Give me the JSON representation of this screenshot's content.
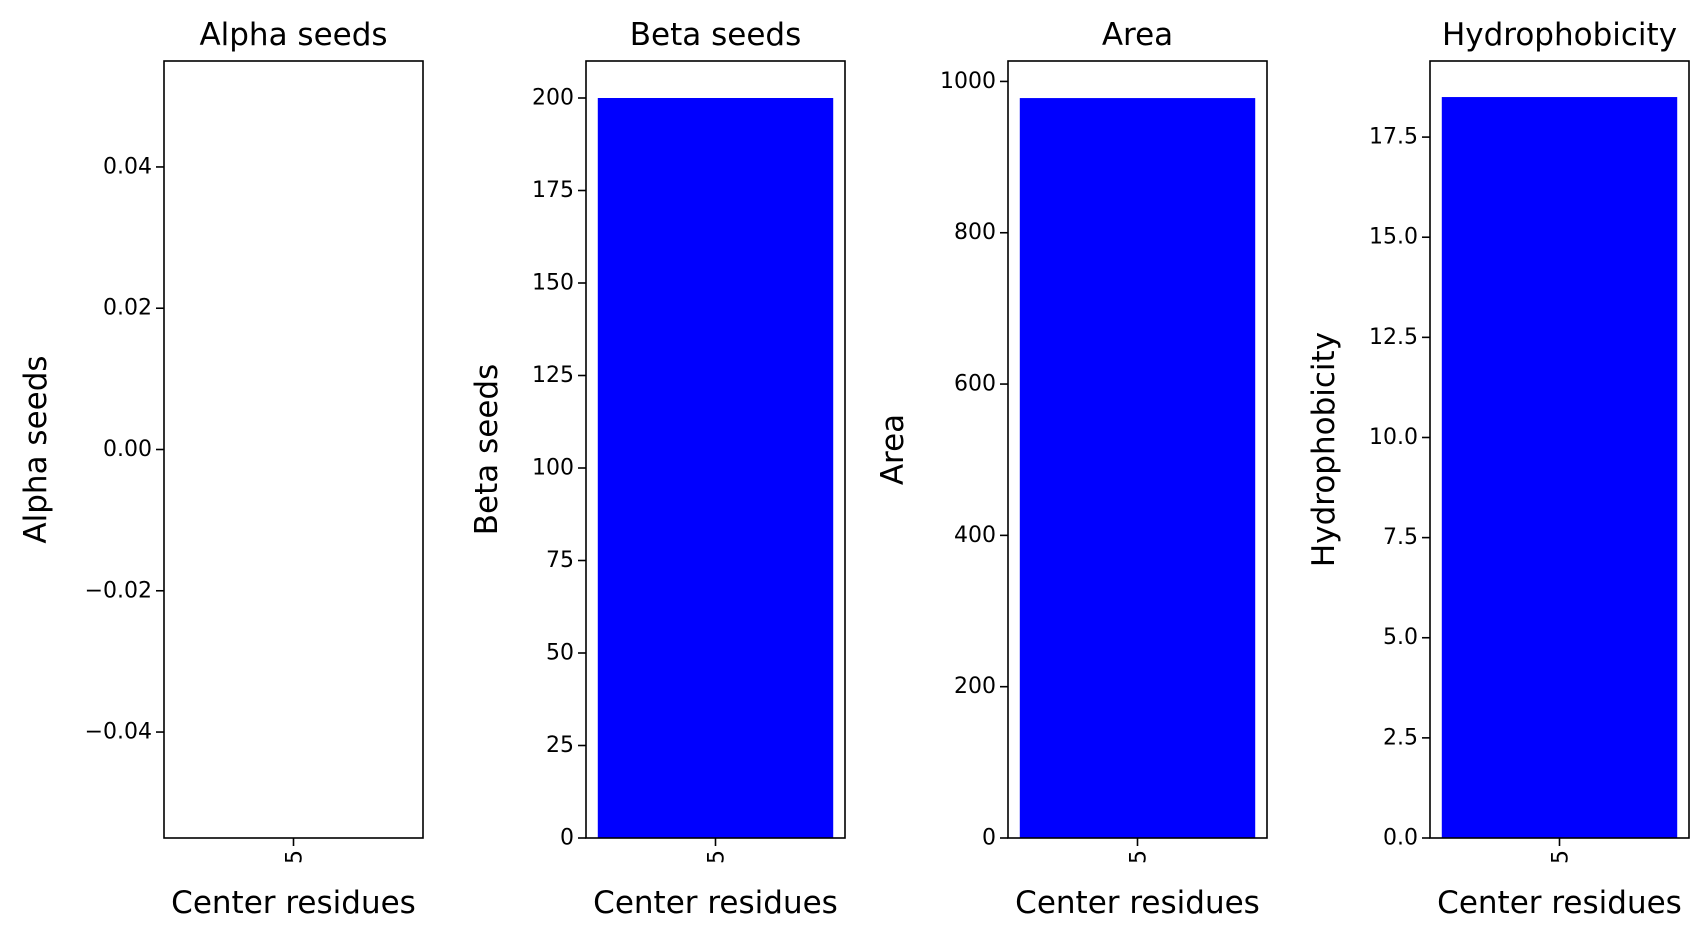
{
  "chart_data": [
    {
      "type": "bar",
      "title": "Alpha seeds",
      "xlabel": "Center residues",
      "ylabel": "Alpha seeds",
      "categories": [
        "5"
      ],
      "values": [
        0
      ],
      "ylim": [
        -0.055,
        0.055
      ],
      "yticks": [
        -0.04,
        -0.02,
        0.0,
        0.02,
        0.04
      ],
      "ytick_labels": [
        "−0.04",
        "−0.02",
        "0.00",
        "0.02",
        "0.04"
      ],
      "bar_color": "#0000ff",
      "grid": false
    },
    {
      "type": "bar",
      "title": "Beta seeds",
      "xlabel": "Center residues",
      "ylabel": "Beta seeds",
      "categories": [
        "5"
      ],
      "values": [
        200
      ],
      "ylim": [
        0,
        210
      ],
      "yticks": [
        0,
        25,
        50,
        75,
        100,
        125,
        150,
        175,
        200
      ],
      "ytick_labels": [
        "0",
        "25",
        "50",
        "75",
        "100",
        "125",
        "150",
        "175",
        "200"
      ],
      "bar_color": "#0000ff",
      "grid": false
    },
    {
      "type": "bar",
      "title": "Area",
      "xlabel": "Center residues",
      "ylabel": "Area",
      "categories": [
        "5"
      ],
      "values": [
        978
      ],
      "ylim": [
        0,
        1027
      ],
      "yticks": [
        0,
        200,
        400,
        600,
        800,
        1000
      ],
      "ytick_labels": [
        "0",
        "200",
        "400",
        "600",
        "800",
        "1000"
      ],
      "bar_color": "#0000ff",
      "grid": false
    },
    {
      "type": "bar",
      "title": "Hydrophobicity",
      "xlabel": "Center residues",
      "ylabel": "Hydrophobicity",
      "categories": [
        "5"
      ],
      "values": [
        18.5
      ],
      "ylim": [
        0,
        19.4
      ],
      "yticks": [
        0.0,
        2.5,
        5.0,
        7.5,
        10.0,
        12.5,
        15.0,
        17.5
      ],
      "ytick_labels": [
        "0.0",
        "2.5",
        "5.0",
        "7.5",
        "10.0",
        "12.5",
        "15.0",
        "17.5"
      ],
      "bar_color": "#0000ff",
      "grid": false
    }
  ]
}
